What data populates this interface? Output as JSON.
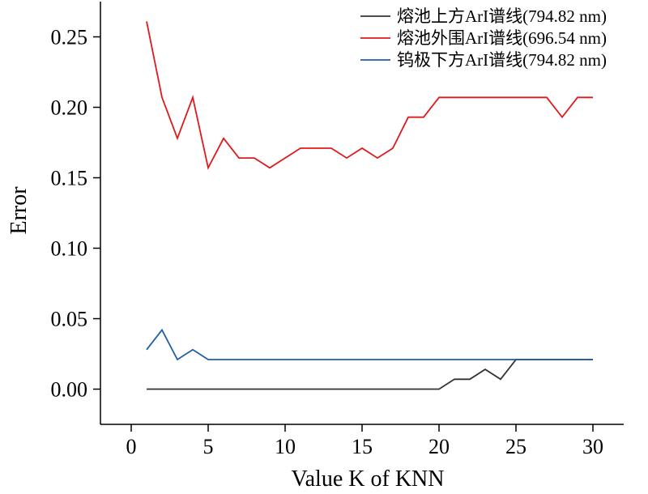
{
  "chart_data": {
    "type": "line",
    "title": "",
    "xlabel": "Value K of KNN",
    "ylabel": "Error",
    "xlim": [
      -2,
      32
    ],
    "ylim": [
      -0.025,
      0.275
    ],
    "xticks": [
      0,
      5,
      10,
      15,
      20,
      25,
      30
    ],
    "xtick_labels": [
      "0",
      "5",
      "10",
      "15",
      "20",
      "25",
      "30"
    ],
    "yticks": [
      0.0,
      0.05,
      0.1,
      0.15,
      0.2,
      0.25
    ],
    "ytick_labels": [
      "0.00",
      "0.05",
      "0.10",
      "0.15",
      "0.20",
      "0.25"
    ],
    "grid": false,
    "legend_position": "top-right",
    "x": [
      1,
      2,
      3,
      4,
      5,
      6,
      7,
      8,
      9,
      10,
      11,
      12,
      13,
      14,
      15,
      16,
      17,
      18,
      19,
      20,
      21,
      22,
      23,
      24,
      25,
      26,
      27,
      28,
      29,
      30
    ],
    "series": [
      {
        "name": "熔池上方ArI谱线(794.82 nm)",
        "color": "#333333",
        "values": [
          0,
          0,
          0,
          0,
          0,
          0,
          0,
          0,
          0,
          0,
          0,
          0,
          0,
          0,
          0,
          0,
          0,
          0,
          0,
          0,
          0.007,
          0.007,
          0.014,
          0.007,
          0.021,
          0.021,
          0.021,
          0.021,
          0.021,
          0.021
        ]
      },
      {
        "name": "熔池外围ArI谱线(696.54 nm)",
        "color": "#e0191c",
        "values": [
          0.261,
          0.207,
          0.178,
          0.207,
          0.157,
          0.178,
          0.164,
          0.164,
          0.157,
          0.164,
          0.171,
          0.171,
          0.171,
          0.164,
          0.171,
          0.164,
          0.171,
          0.193,
          0.193,
          0.207,
          0.207,
          0.207,
          0.207,
          0.207,
          0.207,
          0.207,
          0.207,
          0.193,
          0.207,
          0.207
        ]
      },
      {
        "name": "钨极下方ArI谱线(794.82 nm)",
        "color": "#1f5fa6",
        "values": [
          0.028,
          0.042,
          0.021,
          0.028,
          0.021,
          0.021,
          0.021,
          0.021,
          0.021,
          0.021,
          0.021,
          0.021,
          0.021,
          0.021,
          0.021,
          0.021,
          0.021,
          0.021,
          0.021,
          0.021,
          0.021,
          0.021,
          0.021,
          0.021,
          0.021,
          0.021,
          0.021,
          0.021,
          0.021,
          0.021
        ]
      }
    ]
  }
}
